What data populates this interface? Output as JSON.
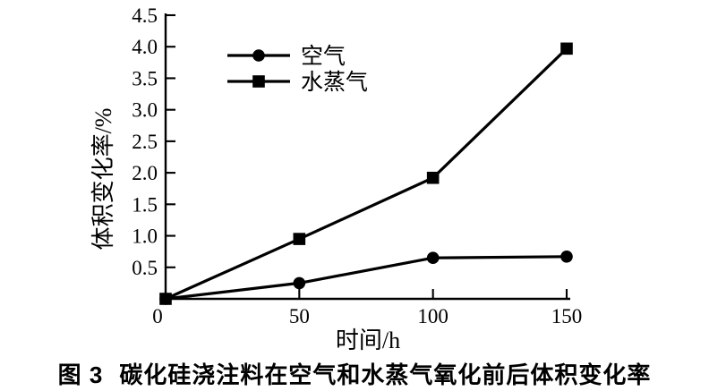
{
  "figure": {
    "caption_label": "图 3",
    "caption_title": "碳化硅浇注料在空气和水蒸气氧化前后体积变化率"
  },
  "chart_data": {
    "type": "line",
    "title": "",
    "xlabel": "时间/h",
    "ylabel": "体积变化率/%",
    "xlim": [
      0,
      150
    ],
    "ylim": [
      0,
      4.5
    ],
    "x": [
      0,
      50,
      100,
      150
    ],
    "x_ticks": [
      0,
      50,
      100,
      150
    ],
    "x_tick_labels": [
      "0",
      "50",
      "100",
      "150"
    ],
    "y_ticks": [
      0.5,
      1.0,
      1.5,
      2.0,
      2.5,
      3.0,
      3.5,
      4.0,
      4.5
    ],
    "y_tick_labels": [
      "0.5",
      "1.0",
      "1.5",
      "2.0",
      "2.5",
      "3.0",
      "3.5",
      "4.0",
      "4.5"
    ],
    "grid": false,
    "legend_position": "upper-left-inside",
    "background_color": "#ffffff",
    "line_color": "#000000",
    "series": [
      {
        "name": "空气",
        "marker": "circle",
        "values": [
          0,
          0.25,
          0.65,
          0.67
        ]
      },
      {
        "name": "水蒸气",
        "marker": "square",
        "values": [
          0,
          0.95,
          1.92,
          3.97
        ]
      }
    ]
  }
}
